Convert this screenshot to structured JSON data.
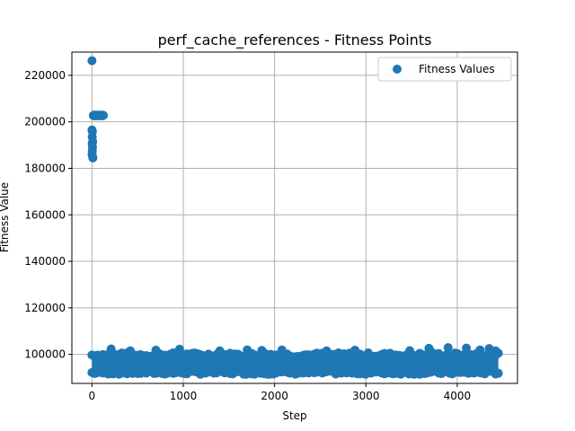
{
  "chart_data": {
    "type": "scatter",
    "title": "perf_cache_references - Fitness Points",
    "xlabel": "Step",
    "ylabel": "Fitness Value",
    "xlim": [
      -220,
      4660
    ],
    "ylim": [
      87500,
      230000
    ],
    "xticks": [
      0,
      1000,
      2000,
      3000,
      4000
    ],
    "xtick_labels": [
      "0",
      "1000",
      "2000",
      "3000",
      "4000"
    ],
    "yticks": [
      100000,
      120000,
      140000,
      160000,
      180000,
      200000,
      220000
    ],
    "ytick_labels": [
      "100000",
      "120000",
      "140000",
      "160000",
      "180000",
      "200000",
      "220000"
    ],
    "grid": true,
    "legend_position": "top-right",
    "color": "#1f77b4",
    "series": [
      {
        "name": "Fitness Values",
        "outliers": [
          [
            0,
            226300
          ],
          [
            0,
            196500
          ],
          [
            5,
            195800
          ],
          [
            3,
            193500
          ],
          [
            8,
            191500
          ],
          [
            2,
            190500
          ],
          [
            6,
            189000
          ],
          [
            4,
            187500
          ],
          [
            1,
            186000
          ],
          [
            7,
            185000
          ],
          [
            10,
            184500
          ],
          [
            15,
            202700
          ],
          [
            25,
            202900
          ],
          [
            35,
            202600
          ],
          [
            45,
            202800
          ],
          [
            55,
            202700
          ],
          [
            65,
            202900
          ],
          [
            75,
            202600
          ],
          [
            85,
            202800
          ],
          [
            95,
            202700
          ],
          [
            105,
            202900
          ],
          [
            115,
            202600
          ],
          [
            125,
            202800
          ],
          [
            210,
            102300
          ],
          [
            420,
            101500
          ],
          [
            700,
            101800
          ],
          [
            960,
            102200
          ],
          [
            1400,
            101500
          ],
          [
            1700,
            101900
          ],
          [
            1860,
            101700
          ],
          [
            2080,
            101900
          ],
          [
            2570,
            101500
          ],
          [
            2880,
            101800
          ],
          [
            3480,
            101600
          ],
          [
            3690,
            102600
          ],
          [
            3700,
            101800
          ],
          [
            3900,
            102900
          ],
          [
            4100,
            102700
          ],
          [
            4250,
            101900
          ],
          [
            4350,
            102500
          ],
          [
            4420,
            101500
          ]
        ],
        "band": {
          "x_range": [
            0,
            4450
          ],
          "y_range": [
            92000,
            100000
          ]
        }
      }
    ]
  }
}
